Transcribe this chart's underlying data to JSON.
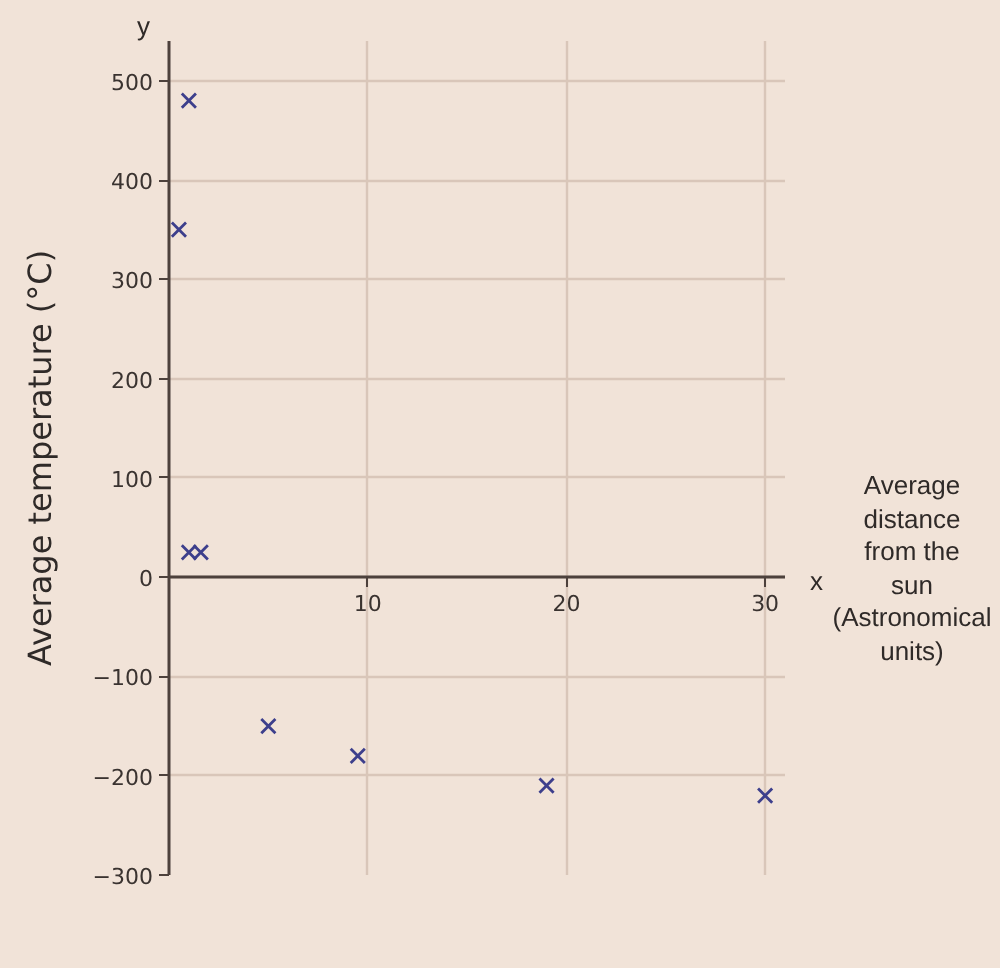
{
  "chart_data": {
    "type": "scatter",
    "xlabel": "Average distance from the sun (Astronomical units)",
    "ylabel": "Average temperature (°C)",
    "annotations": [
      "y",
      "x"
    ],
    "x": [
      0.5,
      1.0,
      1.0,
      1.6,
      5,
      9.5,
      19,
      30
    ],
    "values": [
      350,
      480,
      25,
      25,
      -150,
      -180,
      -210,
      -220
    ],
    "color": "#3d3f8c",
    "marker": "cross",
    "xlim": [
      0,
      31
    ],
    "ylim": [
      -300,
      540
    ],
    "xticks": [
      10,
      20,
      30
    ],
    "yticks": [
      -300,
      -200,
      -100,
      0,
      100,
      200,
      300,
      400,
      500
    ],
    "grid": true
  }
}
